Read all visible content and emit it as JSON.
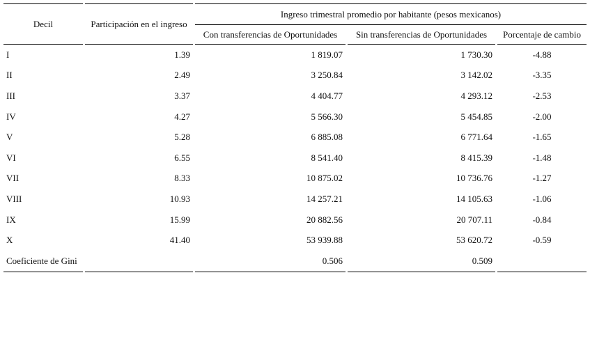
{
  "table": {
    "group_header": "Ingreso trimestral promedio por habitante (pesos mexicanos)",
    "columns": [
      "Decil",
      "Participación en el ingreso",
      "Con transferencias de Oportunidades",
      "Sin transferencias de Oportunidades",
      "Porcentaje de cambio"
    ],
    "rows": [
      [
        "I",
        "1.39",
        "1 819.07",
        "1 730.30",
        "-4.88"
      ],
      [
        "II",
        "2.49",
        "3 250.84",
        "3 142.02",
        "-3.35"
      ],
      [
        "III",
        "3.37",
        "4 404.77",
        "4 293.12",
        "-2.53"
      ],
      [
        "IV",
        "4.27",
        "5 566.30",
        "5 454.85",
        "-2.00"
      ],
      [
        "V",
        "5.28",
        "6 885.08",
        "6 771.64",
        "-1.65"
      ],
      [
        "VI",
        "6.55",
        "8 541.40",
        "8 415.39",
        "-1.48"
      ],
      [
        "VII",
        "8.33",
        "10 875.02",
        "10 736.76",
        "-1.27"
      ],
      [
        "VIII",
        "10.93",
        "14 257.21",
        "14 105.63",
        "-1.06"
      ],
      [
        "IX",
        "15.99",
        "20 882.56",
        "20 707.11",
        "-0.84"
      ],
      [
        "X",
        "41.40",
        "53 939.88",
        "53 620.72",
        "-0.59"
      ]
    ],
    "footer": {
      "label": "Coeficiente de Gini",
      "con": "0.506",
      "sin": "0.509"
    }
  }
}
